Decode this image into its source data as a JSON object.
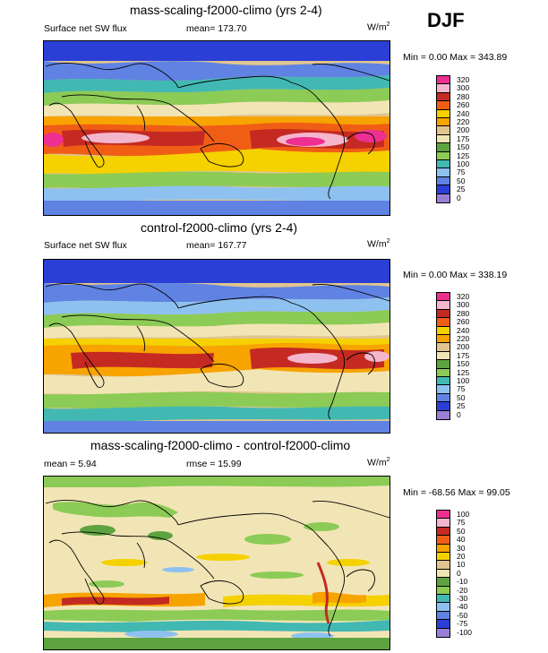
{
  "season": "DJF",
  "palette": {
    "abs": [
      "#9a7fd6",
      "#2b3fd6",
      "#5f82e3",
      "#8ec1f0",
      "#42b8b3",
      "#8ccb56",
      "#5da340",
      "#f2e5b5",
      "#e0c58f",
      "#f7a300",
      "#f5d100",
      "#f05e16",
      "#c42a21",
      "#f4b6cd",
      "#ee2f91"
    ],
    "diff": [
      "#9a7fd6",
      "#2b3fd6",
      "#5f82e3",
      "#8ec1f0",
      "#42b8b3",
      "#8ccb56",
      "#5da340",
      "#f2e5b5",
      "#e0c58f",
      "#f5d100",
      "#f7a300",
      "#f05e16",
      "#c42a21",
      "#f4b6cd",
      "#ee2f91"
    ],
    "land_outline": "#000000"
  },
  "panels": [
    {
      "title": "mass-scaling-f2000-climo (yrs 2-4)",
      "left_label": "Surface net SW flux",
      "mean_text": "mean= 173.70",
      "units": "W/m",
      "units_sup": "2",
      "minmax": "Min =   0.00 Max = 343.89",
      "legend_labels": [
        "320",
        "300",
        "280",
        "260",
        "240",
        "220",
        "200",
        "175",
        "150",
        "125",
        "100",
        "75",
        "50",
        "25",
        "0"
      ]
    },
    {
      "title": "control-f2000-climo (yrs 2-4)",
      "left_label": "Surface net SW flux",
      "mean_text": "mean= 167.77",
      "units": "W/m",
      "units_sup": "2",
      "minmax": "Min =   0.00 Max = 338.19",
      "legend_labels": [
        "320",
        "300",
        "280",
        "260",
        "240",
        "220",
        "200",
        "175",
        "150",
        "125",
        "100",
        "75",
        "50",
        "25",
        "0"
      ]
    },
    {
      "title": "mass-scaling-f2000-climo - control-f2000-climo",
      "left_label": "mean =   5.94",
      "mean_text": "rmse =  15.99",
      "units": "W/m",
      "units_sup": "2",
      "minmax": "Min = -68.56 Max =  99.05",
      "legend_labels": [
        "100",
        "75",
        "50",
        "40",
        "30",
        "20",
        "10",
        "0",
        "-10",
        "-20",
        "-30",
        "-40",
        "-50",
        "-75",
        "-100"
      ]
    }
  ]
}
